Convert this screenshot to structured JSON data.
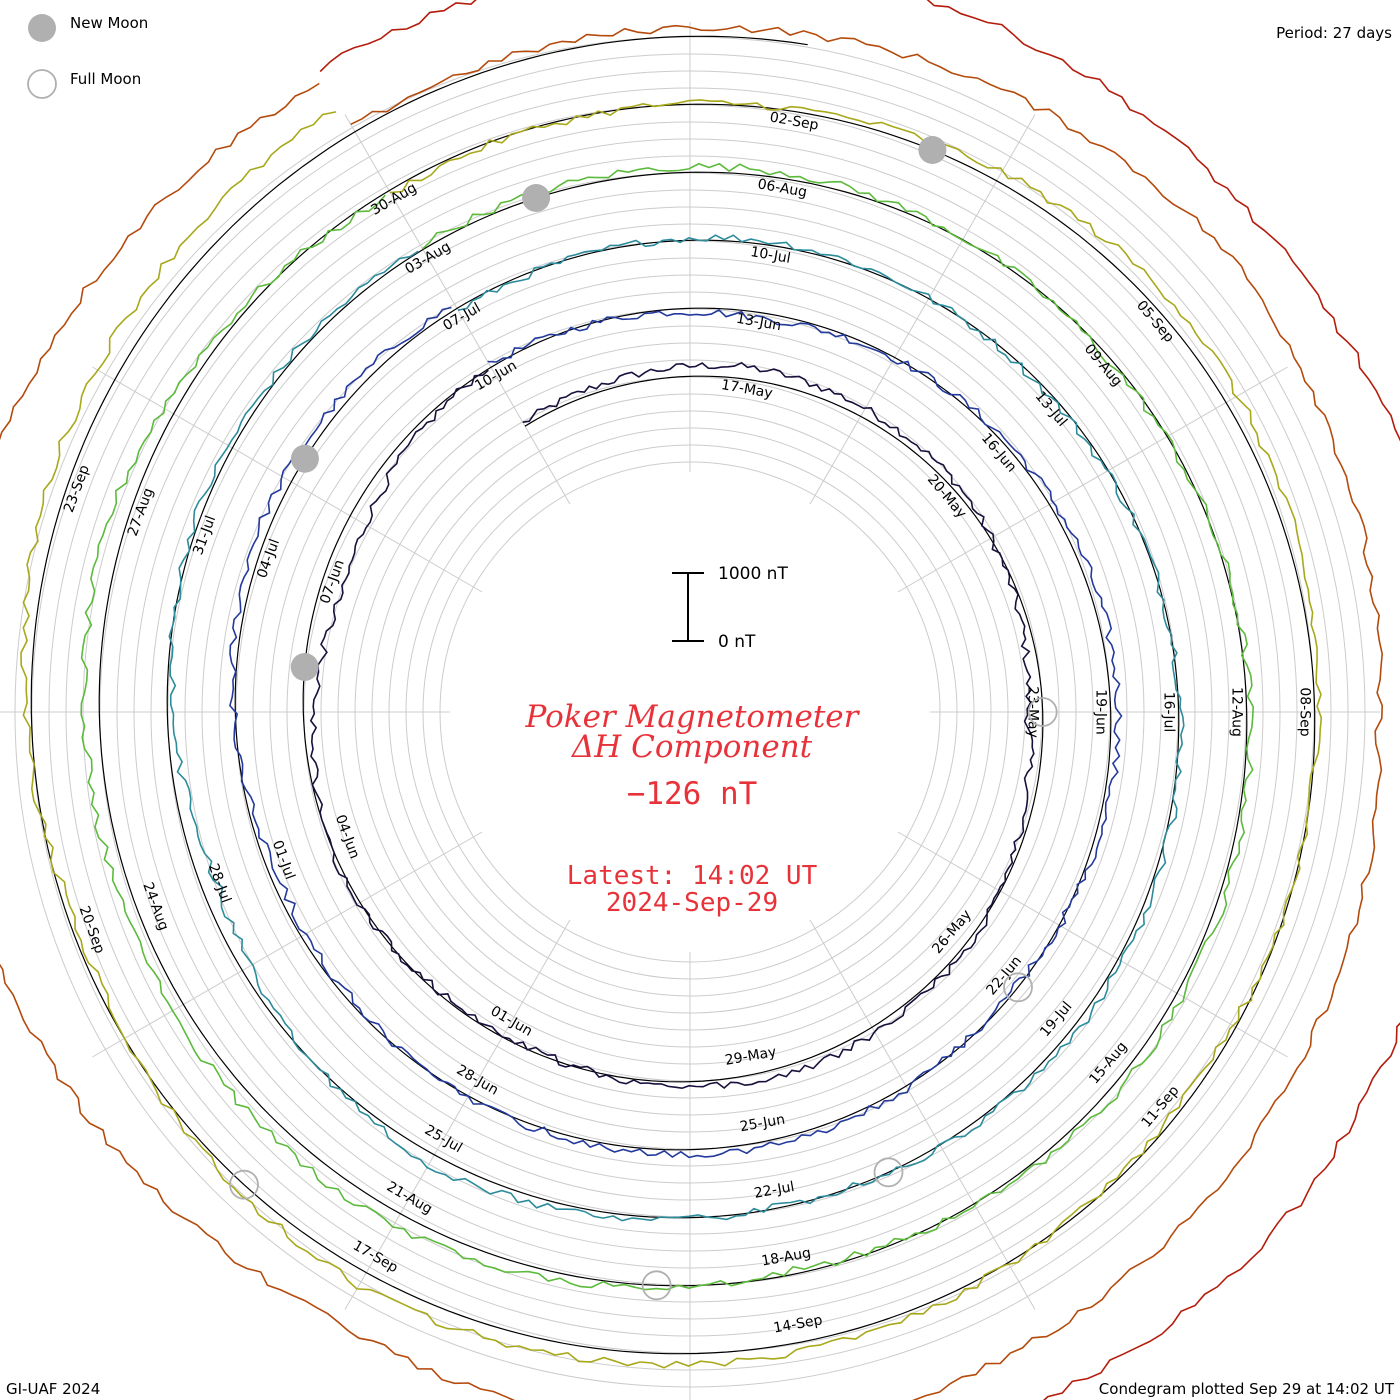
{
  "legend": {
    "new_moon_label": "New Moon",
    "full_moon_label": "Full Moon"
  },
  "period_label": "Period: 27 days",
  "footer": {
    "left": "GI-UAF 2024",
    "right": "Condegram plotted Sep 29 at 14:02 UT"
  },
  "title": {
    "line1": "Poker Magnetometer",
    "line2": "ΔH Component",
    "value": "−126 nT"
  },
  "latest": {
    "line1": "Latest: 14:02 UT",
    "line2": "2024-Sep-29"
  },
  "scale_bar": {
    "top_label": "1000 nT",
    "bottom_label": "0 nT",
    "nT": 1000
  },
  "colors": {
    "title_red": "#e8323a",
    "moon_fill": "#b0b0b0",
    "grid": "#c8c8c8",
    "baseline": "#000000"
  },
  "chart_data": {
    "type": "line",
    "layout": "spiral condegram",
    "period_days": 27,
    "start_date": "2024-05-14",
    "end_date": "2024-09-29",
    "value_unit": "nT",
    "current_value": -126,
    "date_labels": [
      "17-May",
      "20-May",
      "23-May",
      "26-May",
      "29-May",
      "01-Jun",
      "04-Jun",
      "07-Jun",
      "10-Jun",
      "13-Jun",
      "16-Jun",
      "19-Jun",
      "22-Jun",
      "25-Jun",
      "28-Jun",
      "01-Jul",
      "04-Jul",
      "07-Jul",
      "10-Jul",
      "13-Jul",
      "16-Jul",
      "19-Jul",
      "22-Jul",
      "25-Jul",
      "28-Jul",
      "31-Jul",
      "03-Aug",
      "06-Aug",
      "09-Aug",
      "12-Aug",
      "15-Aug",
      "18-Aug",
      "21-Aug",
      "24-Aug",
      "27-Aug",
      "30-Aug",
      "02-Sep",
      "05-Sep",
      "08-Sep",
      "11-Sep",
      "14-Sep",
      "17-Sep",
      "20-Sep",
      "23-Sep"
    ],
    "series": [
      {
        "days_of_period": [
          0,
          3,
          6,
          9,
          12,
          15,
          18,
          21,
          24,
          27
        ],
        "delta_h_nT": [
          50,
          180,
          90,
          -220,
          60,
          120,
          -60,
          40,
          -350,
          30
        ],
        "color": "#1a0f3c"
      },
      {
        "days_of_period": [
          0,
          3,
          6,
          9,
          12,
          15,
          18,
          21,
          24,
          27
        ],
        "delta_h_nT": [
          40,
          -80,
          60,
          120,
          -30,
          90,
          20,
          -120,
          150,
          70
        ],
        "color": "#233a9c"
      },
      {
        "days_of_period": [
          0,
          3,
          6,
          9,
          12,
          15,
          18,
          21,
          24,
          27
        ],
        "delta_h_nT": [
          -50,
          60,
          -40,
          30,
          80,
          -20,
          160,
          -240,
          70,
          40
        ],
        "color": "#2c8c9c"
      },
      {
        "days_of_period": [
          0,
          3,
          6,
          9,
          12,
          15,
          18,
          21,
          24,
          27
        ],
        "delta_h_nT": [
          60,
          90,
          -40,
          50,
          120,
          -60,
          220,
          180,
          260,
          -80
        ],
        "color": "#5cba3c"
      },
      {
        "days_of_period": [
          0,
          3,
          6,
          9,
          12,
          15,
          18,
          21,
          24,
          27
        ],
        "delta_h_nT": [
          -60,
          40,
          250,
          50,
          -80,
          140,
          220,
          -100,
          280,
          420
        ],
        "color": "#a8a81c"
      },
      {
        "days_of_period": [
          0,
          3,
          6,
          9,
          12,
          15,
          18,
          21,
          24,
          27
        ],
        "delta_h_nT": [
          70,
          150,
          320,
          -60,
          120,
          250,
          -180,
          210,
          160,
          -120
        ],
        "color": "#b44a0c"
      },
      {
        "days_of_period": [
          0,
          3,
          6,
          9,
          12,
          15
        ],
        "delta_h_nT": [
          40,
          90,
          -60,
          120,
          200,
          -126
        ],
        "color": "#b41c0c"
      }
    ],
    "moon_phases": {
      "new_moon": [
        "2024-06-06",
        "2024-07-05",
        "2024-08-04",
        "2024-09-03"
      ],
      "full_moon": [
        "2024-05-23",
        "2024-06-22",
        "2024-07-21",
        "2024-08-19",
        "2024-09-18"
      ]
    },
    "grid": true
  }
}
